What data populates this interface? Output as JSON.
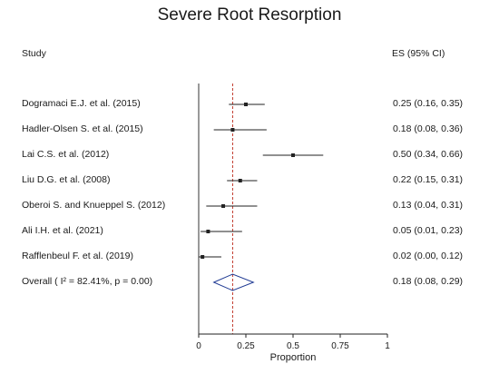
{
  "chart_data": {
    "type": "forest",
    "title": "Severe Root Resorption",
    "column_headers": {
      "study": "Study",
      "es": "ES (95% CI)"
    },
    "studies": [
      {
        "label": "Dogramaci E.J. et al. (2015)",
        "es": 0.25,
        "lo": 0.16,
        "hi": 0.35,
        "es_text": "0.25 (0.16, 0.35)"
      },
      {
        "label": "Hadler-Olsen S. et al. (2015)",
        "es": 0.18,
        "lo": 0.08,
        "hi": 0.36,
        "es_text": "0.18 (0.08, 0.36)"
      },
      {
        "label": "Lai C.S. et al. (2012)",
        "es": 0.5,
        "lo": 0.34,
        "hi": 0.66,
        "es_text": "0.50 (0.34, 0.66)"
      },
      {
        "label": "Liu D.G. et al. (2008)",
        "es": 0.22,
        "lo": 0.15,
        "hi": 0.31,
        "es_text": "0.22 (0.15, 0.31)"
      },
      {
        "label": "Oberoi S. and Knueppel S. (2012)",
        "es": 0.13,
        "lo": 0.04,
        "hi": 0.31,
        "es_text": "0.13 (0.04, 0.31)"
      },
      {
        "label": "Ali I.H. et al. (2021)",
        "es": 0.05,
        "lo": 0.01,
        "hi": 0.23,
        "es_text": "0.05 (0.01, 0.23)"
      },
      {
        "label": "Rafflenbeul F. et al. (2019)",
        "es": 0.02,
        "lo": 0.0,
        "hi": 0.12,
        "es_text": "0.02 (0.00, 0.12)"
      }
    ],
    "overall": {
      "label": "Overall   ( I² = 82.41%, p = 0.00)",
      "es": 0.18,
      "lo": 0.08,
      "hi": 0.29,
      "es_text": "0.18 (0.08, 0.29)"
    },
    "x_ticks": [
      {
        "value": 0,
        "label": "0"
      },
      {
        "value": 0.25,
        "label": "0.25"
      },
      {
        "value": 0.5,
        "label": "0.5"
      },
      {
        "value": 0.75,
        "label": "0.75"
      },
      {
        "value": 1,
        "label": "1"
      }
    ],
    "xlabel": "Proportion",
    "xlim": [
      0,
      1
    ],
    "null_line": 0,
    "overall_line": 0.18
  }
}
